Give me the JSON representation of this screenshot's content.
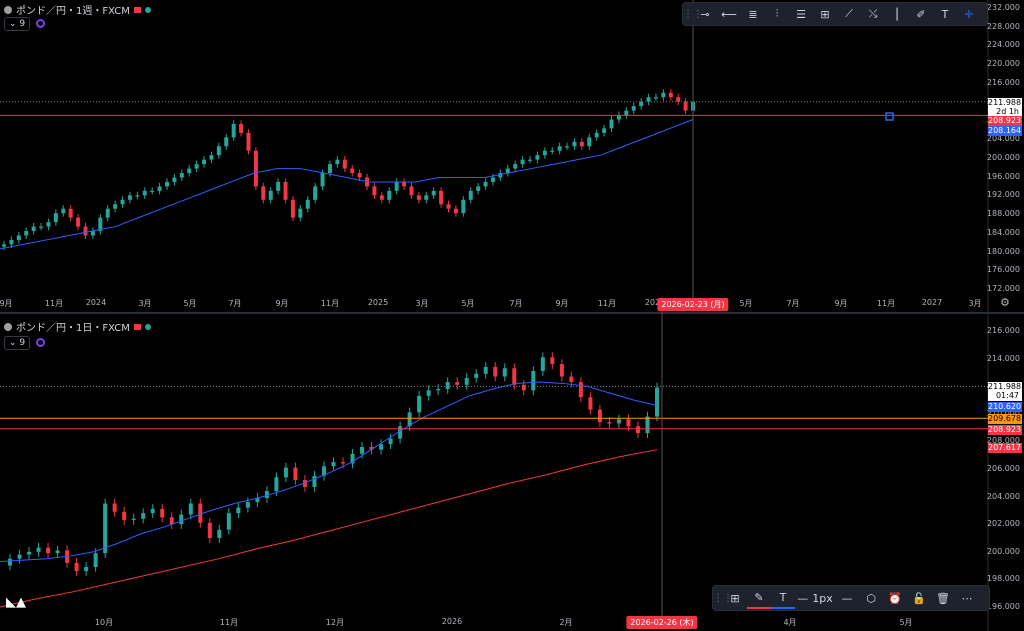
{
  "colors": {
    "up": "#26a69a",
    "down": "#f23645",
    "ma_blue": "#2962ff",
    "ma_red": "#f23645",
    "bg": "#000000"
  },
  "top": {
    "legend_title": "ポンド／円・1週・FXCM",
    "indicator_count": "9",
    "price_labels": [
      "232.000",
      "228.000",
      "224.000",
      "220.000",
      "216.000",
      "212.000",
      "208.000",
      "204.000",
      "200.000",
      "196.000",
      "192.000",
      "188.000",
      "184.000",
      "180.000",
      "176.000",
      "172.000"
    ],
    "tags": {
      "last": "211.988",
      "countdown": "2d 1h",
      "line": "208.923",
      "ma": "208.164"
    },
    "x_labels": [
      "9月",
      "11月",
      "2024",
      "3月",
      "5月",
      "7月",
      "9月",
      "11月",
      "2025",
      "3月",
      "5月",
      "7月",
      "9月",
      "11月",
      "2026",
      "5月",
      "7月",
      "9月",
      "11月",
      "2027",
      "3月"
    ],
    "cursor_date": "2026-02-23 (月)",
    "toolbar_icons": [
      "horizontal-ray-icon",
      "horizontal-line-icon",
      "parallel-channel-icon",
      "fib-channel-icon",
      "fib-levels-icon",
      "grid-icon",
      "trend-line-icon",
      "path-icon",
      "vertical-line-icon",
      "brush-icon",
      "text-icon",
      "crosshair-icon"
    ],
    "settings_icon": "gear-icon"
  },
  "bottom": {
    "legend_title": "ポンド／円・1日・FXCM",
    "indicator_count": "9",
    "price_labels": [
      "216.000",
      "214.000",
      "212.000",
      "210.000",
      "208.000",
      "206.000",
      "204.000",
      "202.000",
      "200.000",
      "198.000",
      "196.000"
    ],
    "tags": {
      "last": "211.988",
      "countdown": "01:47",
      "ma_blue": "210.620",
      "orange": "209.678",
      "line": "208.923",
      "ma_red": "207.617"
    },
    "x_labels": [
      "10月",
      "11月",
      "12月",
      "2026",
      "2月",
      "4月",
      "5月"
    ],
    "cursor_date": "2026-02-26 (木)",
    "toolbar": {
      "width_label": "1px",
      "icons": [
        "grid-icon",
        "pencil-icon",
        "text-icon",
        "line-style-icon",
        "settings-icon",
        "alarm-icon",
        "lock-icon",
        "trash-icon",
        "more-icon"
      ]
    }
  },
  "chart_data": [
    {
      "type": "candlestick",
      "title": "ポンド／円・1週・FXCM",
      "ylim": [
        170,
        233
      ],
      "x_labels": [
        "9月",
        "11月",
        "2024",
        "3月",
        "5月",
        "7月",
        "9月",
        "11月",
        "2025",
        "3月",
        "5月",
        "7月",
        "9月",
        "11月",
        "2026"
      ],
      "closes": [
        180,
        181,
        182,
        183,
        184,
        184,
        185,
        187,
        188,
        186,
        184,
        182,
        183,
        186,
        188,
        189,
        190,
        191,
        191,
        192,
        192,
        193,
        194,
        195,
        196,
        197,
        198,
        199,
        200,
        202,
        204,
        207,
        205,
        201,
        193,
        190,
        192,
        194,
        190,
        186,
        188,
        190,
        193,
        196,
        198,
        199,
        197,
        196,
        195,
        193,
        191,
        190,
        192,
        194,
        193,
        191,
        190,
        191,
        192,
        189,
        188,
        187,
        190,
        192,
        193,
        194,
        195,
        196,
        197,
        198,
        199,
        199,
        200,
        201,
        201,
        202,
        202,
        203,
        202,
        204,
        205,
        206,
        208,
        209,
        210,
        211,
        212,
        213,
        213,
        214,
        213,
        212,
        210,
        212
      ],
      "ma": [
        179,
        180,
        181,
        182,
        183,
        184,
        186,
        188,
        190,
        192,
        194,
        196,
        197,
        197,
        196,
        195,
        194,
        194,
        194,
        195,
        195,
        195,
        196,
        197,
        198,
        199,
        200,
        202,
        204,
        206,
        208
      ]
    },
    {
      "type": "candlestick",
      "title": "ポンド／円・1日・FXCM",
      "ylim": [
        196,
        216
      ],
      "x_labels": [
        "10月",
        "11月",
        "12月",
        "2026",
        "2月"
      ],
      "closes": [
        199.5,
        199.8,
        200,
        200.3,
        199.9,
        200.1,
        199.2,
        198.6,
        198.9,
        199.9,
        203.5,
        202.9,
        202.3,
        202.4,
        202.8,
        203.1,
        202.5,
        202,
        202.7,
        203.5,
        202.1,
        201,
        201.6,
        202.8,
        203.2,
        203.6,
        203.9,
        204.4,
        205.4,
        206.1,
        205.2,
        204.7,
        205.5,
        206.2,
        206.5,
        206.4,
        207.1,
        207.6,
        207.4,
        207.8,
        208.2,
        209.1,
        210.1,
        211.3,
        211.7,
        211.8,
        212.3,
        212.1,
        212.6,
        212.9,
        213.4,
        212.7,
        213.3,
        212.1,
        211.7,
        213.1,
        214.1,
        213.6,
        212.7,
        212.3,
        211.2,
        210.3,
        209.4,
        209.3,
        209.6,
        209.1,
        208.6,
        209.8,
        211.9
      ],
      "ma_blue": [
        199.3,
        199.4,
        199.5,
        199.7,
        200,
        200.6,
        201.3,
        201.8,
        202.4,
        203,
        203.5,
        203.9,
        204.4,
        205,
        205.7,
        206.5,
        207.6,
        208.7,
        209.7,
        210.5,
        211.3,
        211.8,
        212.2,
        212.3,
        212.2,
        212,
        211.5,
        211,
        210.6
      ],
      "ma_red": [
        196,
        196.6,
        197.1,
        197.7,
        198.3,
        198.9,
        199.5,
        200.2,
        200.8,
        201.5,
        202.2,
        202.9,
        203.6,
        204.3,
        205,
        205.6,
        206.3,
        206.9,
        207.4
      ]
    }
  ]
}
